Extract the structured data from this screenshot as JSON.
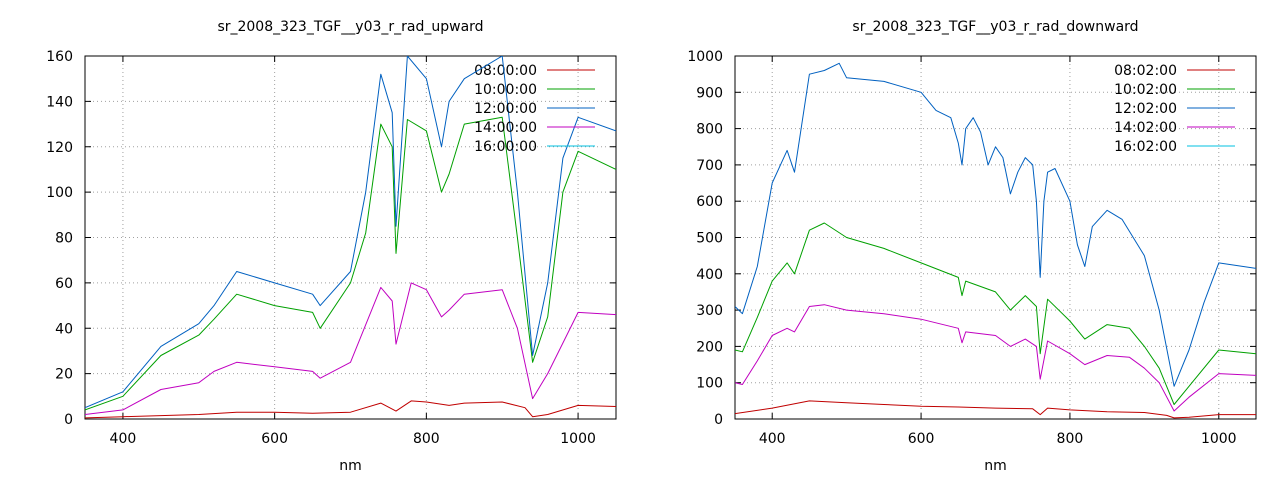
{
  "chart_data": [
    {
      "type": "line",
      "title": "sr_2008_323_TGF__y03_r_rad_upward",
      "xlabel": "nm",
      "ylabel": "",
      "xlim": [
        350,
        1050
      ],
      "ylim": [
        0,
        160
      ],
      "xticks": [
        400,
        600,
        800,
        1000
      ],
      "yticks": [
        0,
        20,
        40,
        60,
        80,
        100,
        120,
        140,
        160
      ],
      "grid": true,
      "legend_position": "top-right",
      "series": [
        {
          "name": "08:00:00",
          "color": "#c00000",
          "x": [
            350,
            400,
            450,
            500,
            550,
            600,
            650,
            700,
            740,
            760,
            780,
            800,
            830,
            850,
            900,
            930,
            940,
            960,
            1000,
            1050
          ],
          "y": [
            0.5,
            1,
            1.5,
            2,
            3,
            3,
            2.5,
            3,
            7,
            3.5,
            8,
            7.5,
            6,
            7,
            7.5,
            5,
            1,
            2,
            6,
            5.5
          ]
        },
        {
          "name": "10:00:00",
          "color": "#00a000",
          "x": [
            350,
            400,
            450,
            500,
            520,
            550,
            600,
            650,
            660,
            700,
            720,
            740,
            755,
            760,
            775,
            800,
            820,
            830,
            850,
            900,
            920,
            940,
            960,
            980,
            1000,
            1050
          ],
          "y": [
            4,
            10,
            28,
            37,
            44,
            55,
            50,
            47,
            40,
            60,
            82,
            130,
            120,
            73,
            132,
            127,
            100,
            108,
            130,
            133,
            80,
            25,
            45,
            100,
            118,
            110
          ]
        },
        {
          "name": "12:00:00",
          "color": "#0060c0",
          "x": [
            350,
            400,
            450,
            500,
            520,
            550,
            600,
            650,
            660,
            700,
            720,
            740,
            755,
            760,
            775,
            800,
            820,
            830,
            850,
            900,
            920,
            940,
            960,
            980,
            1000,
            1050
          ],
          "y": [
            5,
            12,
            32,
            42,
            50,
            65,
            60,
            55,
            50,
            65,
            100,
            152,
            135,
            85,
            160,
            150,
            120,
            140,
            150,
            160,
            100,
            28,
            60,
            115,
            133,
            127
          ]
        },
        {
          "name": "14:00:00",
          "color": "#c000c0",
          "x": [
            350,
            400,
            450,
            500,
            520,
            550,
            600,
            650,
            660,
            700,
            740,
            755,
            760,
            780,
            800,
            820,
            830,
            850,
            900,
            920,
            940,
            960,
            1000,
            1050
          ],
          "y": [
            2,
            4,
            13,
            16,
            21,
            25,
            23,
            21,
            18,
            25,
            58,
            52,
            33,
            60,
            57,
            45,
            48,
            55,
            57,
            40,
            9,
            20,
            47,
            46
          ]
        },
        {
          "name": "16:00:00",
          "color": "#00c0e0",
          "x": [],
          "y": []
        }
      ]
    },
    {
      "type": "line",
      "title": "sr_2008_323_TGF__y03_r_rad_downward",
      "xlabel": "nm",
      "ylabel": "",
      "xlim": [
        350,
        1050
      ],
      "ylim": [
        0,
        1000
      ],
      "xticks": [
        400,
        600,
        800,
        1000
      ],
      "yticks": [
        0,
        100,
        200,
        300,
        400,
        500,
        600,
        700,
        800,
        900,
        1000
      ],
      "grid": true,
      "legend_position": "top-right",
      "series": [
        {
          "name": "08:02:00",
          "color": "#c00000",
          "x": [
            350,
            400,
            450,
            500,
            550,
            600,
            650,
            700,
            750,
            760,
            770,
            800,
            850,
            900,
            930,
            940,
            960,
            1000,
            1050
          ],
          "y": [
            15,
            30,
            50,
            45,
            40,
            35,
            33,
            30,
            28,
            12,
            30,
            25,
            20,
            18,
            10,
            3,
            5,
            12,
            12
          ]
        },
        {
          "name": "10:02:00",
          "color": "#00a000",
          "x": [
            350,
            360,
            380,
            400,
            420,
            430,
            450,
            470,
            500,
            550,
            600,
            650,
            655,
            660,
            700,
            720,
            740,
            755,
            760,
            770,
            800,
            820,
            850,
            880,
            900,
            920,
            940,
            960,
            1000,
            1050
          ],
          "y": [
            190,
            185,
            280,
            380,
            430,
            400,
            520,
            540,
            500,
            470,
            430,
            390,
            340,
            380,
            350,
            300,
            340,
            310,
            180,
            330,
            270,
            220,
            260,
            250,
            200,
            140,
            40,
            90,
            190,
            180
          ]
        },
        {
          "name": "12:02:00",
          "color": "#0060c0",
          "x": [
            350,
            360,
            380,
            400,
            420,
            430,
            450,
            470,
            490,
            500,
            550,
            600,
            620,
            640,
            650,
            655,
            660,
            670,
            680,
            690,
            700,
            710,
            720,
            730,
            740,
            750,
            755,
            760,
            765,
            770,
            780,
            800,
            810,
            820,
            830,
            850,
            870,
            900,
            920,
            940,
            960,
            980,
            1000,
            1050
          ],
          "y": [
            310,
            290,
            420,
            650,
            740,
            680,
            950,
            960,
            980,
            940,
            930,
            900,
            850,
            830,
            760,
            700,
            800,
            830,
            790,
            700,
            750,
            720,
            620,
            680,
            720,
            700,
            600,
            390,
            600,
            680,
            690,
            600,
            480,
            420,
            530,
            575,
            550,
            450,
            300,
            90,
            190,
            320,
            430,
            415
          ]
        },
        {
          "name": "14:02:00",
          "color": "#c000c0",
          "x": [
            350,
            360,
            380,
            400,
            420,
            430,
            450,
            470,
            500,
            550,
            600,
            650,
            655,
            660,
            700,
            720,
            740,
            755,
            760,
            770,
            800,
            820,
            850,
            880,
            900,
            920,
            940,
            960,
            1000,
            1050
          ],
          "y": [
            100,
            95,
            160,
            230,
            250,
            240,
            310,
            315,
            300,
            290,
            275,
            250,
            210,
            240,
            230,
            200,
            220,
            200,
            110,
            215,
            180,
            150,
            175,
            170,
            140,
            100,
            22,
            60,
            125,
            120
          ]
        },
        {
          "name": "16:02:00",
          "color": "#00c0e0",
          "x": [],
          "y": []
        }
      ]
    }
  ]
}
